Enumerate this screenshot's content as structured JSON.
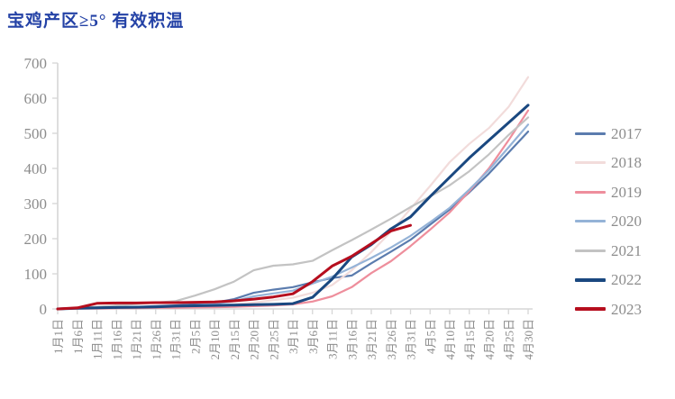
{
  "title": {
    "text": "宝鸡产区≥5° 有效积温",
    "color": "#2442A6"
  },
  "chart_data": {
    "type": "line",
    "title": "宝鸡产区≥5° 有效积温",
    "categories": [
      "1月1日",
      "1月6日",
      "1月11日",
      "1月16日",
      "1月21日",
      "1月26日",
      "1月31日",
      "2月5日",
      "2月10日",
      "2月15日",
      "2月20日",
      "2月25日",
      "3月1日",
      "3月6日",
      "3月11日",
      "3月16日",
      "3月21日",
      "3月26日",
      "3月31日",
      "4月5日",
      "4月10日",
      "4月15日",
      "4月20日",
      "4月25日",
      "4月30日"
    ],
    "ylabel": "",
    "xlabel": "",
    "ylim": [
      0,
      700
    ],
    "ytick_step": 100,
    "grid": false,
    "legend_position": "right",
    "axis_color": "#D6D6D6",
    "label_color": "#8c8c8c",
    "series": [
      {
        "name": "2017",
        "color": "#5B7CAE",
        "width": 2.2,
        "values": [
          0,
          2,
          3,
          5,
          6,
          8,
          10,
          13,
          18,
          28,
          46,
          55,
          62,
          76,
          88,
          95,
          130,
          163,
          197,
          240,
          283,
          332,
          385,
          445,
          505
        ]
      },
      {
        "name": "2018",
        "color": "#F2DCDB",
        "width": 2.2,
        "values": [
          0,
          1,
          2,
          3,
          4,
          5,
          6,
          8,
          10,
          13,
          18,
          25,
          32,
          46,
          68,
          110,
          162,
          220,
          285,
          350,
          418,
          470,
          515,
          575,
          660
        ]
      },
      {
        "name": "2019",
        "color": "#EE8E9C",
        "width": 2.2,
        "values": [
          0,
          1,
          1,
          2,
          2,
          3,
          3,
          4,
          5,
          6,
          8,
          10,
          13,
          21,
          36,
          62,
          102,
          136,
          179,
          226,
          275,
          335,
          400,
          480,
          565
        ]
      },
      {
        "name": "2020",
        "color": "#95B3D7",
        "width": 2.2,
        "values": [
          0,
          2,
          3,
          4,
          5,
          6,
          8,
          10,
          15,
          22,
          36,
          44,
          52,
          72,
          92,
          118,
          145,
          175,
          208,
          247,
          288,
          340,
          395,
          460,
          525
        ]
      },
      {
        "name": "2021",
        "color": "#C3C3C3",
        "width": 2.2,
        "values": [
          0,
          3,
          6,
          10,
          14,
          18,
          22,
          38,
          56,
          78,
          110,
          123,
          127,
          137,
          167,
          196,
          226,
          257,
          290,
          320,
          352,
          392,
          440,
          495,
          545
        ]
      },
      {
        "name": "2022",
        "color": "#1A4880",
        "width": 3,
        "values": [
          0,
          2,
          3,
          4,
          5,
          6,
          8,
          9,
          10,
          11,
          12,
          13,
          15,
          33,
          85,
          148,
          183,
          228,
          262,
          320,
          375,
          430,
          480,
          530,
          580
        ]
      },
      {
        "name": "2023",
        "color": "#B60E1E",
        "width": 3,
        "values": [
          0,
          3,
          16,
          17,
          17,
          18,
          18,
          19,
          20,
          23,
          28,
          34,
          43,
          78,
          122,
          150,
          186,
          222,
          238
        ]
      }
    ]
  }
}
